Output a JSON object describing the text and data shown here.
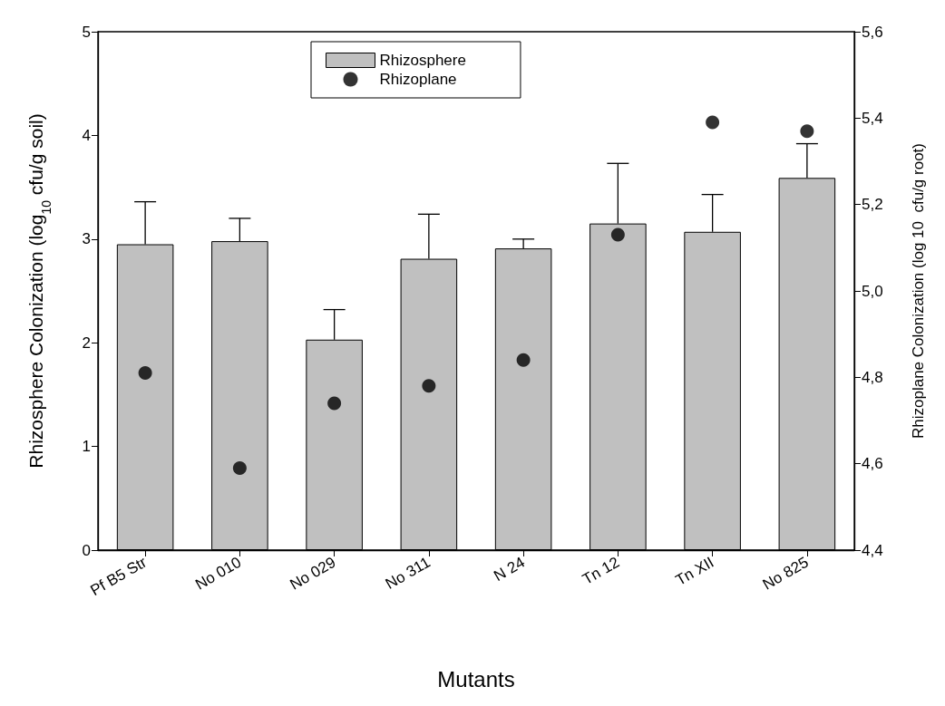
{
  "chart_data": {
    "type": "bar",
    "xlabel": "Mutants",
    "ylabel": "Rhizosphere Colonization (log$_{10}$ cfu/g soil)",
    "y2label": "Rhizoplane Colonization (log 10  cfu/g root)",
    "categories": [
      "Pf B5 Str",
      "No 010",
      "No 029",
      "No 311",
      "N 24",
      "Tn 12",
      "Tn XII",
      "No 825"
    ],
    "series": [
      {
        "name": "Rhizosphere",
        "color": "#c0c0c0",
        "values": [
          2.95,
          2.98,
          2.03,
          2.81,
          2.91,
          3.15,
          3.07,
          3.59
        ],
        "errors": [
          [
            2.95,
            3.36
          ],
          [
            2.98,
            3.2
          ],
          [
            2.03,
            2.32
          ],
          [
            2.81,
            3.24
          ],
          [
            2.91,
            3.0
          ],
          [
            3.15,
            3.73
          ],
          [
            3.07,
            3.43
          ],
          [
            3.59,
            3.92
          ]
        ]
      },
      {
        "name": "Rhizoplane",
        "type": "scatter",
        "axis": "y2",
        "color": "#000000",
        "x": [
          "Pf B5 Str",
          "No 010",
          "No 029",
          "No 311",
          "N 24",
          "Tn 12",
          "Tn XII",
          "No 825"
        ],
        "values": [
          4.81,
          4.59,
          4.74,
          4.78,
          4.84,
          5.13,
          5.39,
          5.37
        ]
      }
    ],
    "ylim": [
      0,
      5
    ],
    "yticks": [
      0,
      1,
      2,
      3,
      4,
      5
    ],
    "y2lim": [
      4.4,
      5.6
    ],
    "y2ticks": [
      {
        "value": 4.4,
        "label": "4,4"
      },
      {
        "value": 4.6,
        "label": "4,6"
      },
      {
        "value": 4.8,
        "label": "4,8"
      },
      {
        "value": 5.0,
        "label": "5,0"
      },
      {
        "value": 5.2,
        "label": "5,2"
      },
      {
        "value": 5.4,
        "label": "5,4"
      },
      {
        "value": 5.6,
        "label": "5,6"
      }
    ],
    "grid": false,
    "legend": "top",
    "marker": "circle"
  }
}
